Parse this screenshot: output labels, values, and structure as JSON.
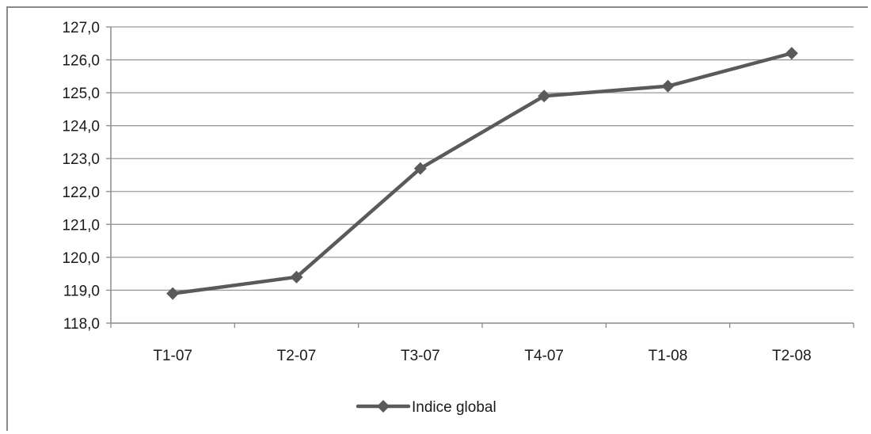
{
  "chart_data": {
    "type": "line",
    "categories": [
      "T1-07",
      "T2-07",
      "T3-07",
      "T4-07",
      "T1-08",
      "T2-08"
    ],
    "series": [
      {
        "name": "Indice global",
        "values": [
          118.9,
          119.4,
          122.7,
          124.9,
          125.2,
          126.2
        ]
      }
    ],
    "y_ticks": [
      "118,0",
      "119,0",
      "120,0",
      "121,0",
      "122,0",
      "123,0",
      "124,0",
      "125,0",
      "126,0",
      "127,0"
    ],
    "ylim": [
      118,
      127
    ],
    "grid": true,
    "legend": "bottom",
    "colors": {
      "series": "#5a5a5a",
      "grid": "#9a9a9a",
      "axis": "#8a8a8a"
    }
  }
}
